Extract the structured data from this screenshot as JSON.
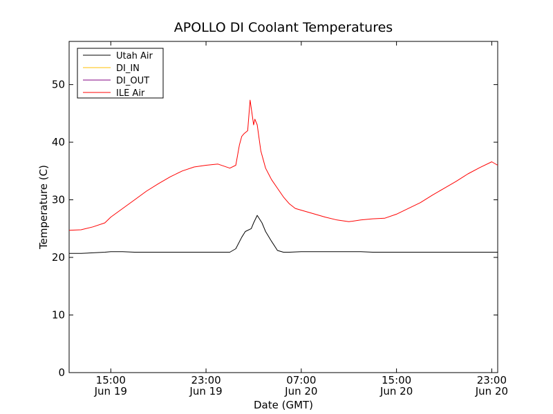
{
  "chart_data": {
    "type": "line",
    "title": "APOLLO DI Coolant Temperatures",
    "xlabel": "Date (GMT)",
    "ylabel": "Temperature (C)",
    "xlim_hours": [
      11.5,
      47.5
    ],
    "ylim": [
      0,
      57.5
    ],
    "yticks": [
      0,
      10,
      20,
      30,
      40,
      50
    ],
    "xticks": [
      {
        "hour": 15,
        "time": "15:00",
        "date": "Jun 19"
      },
      {
        "hour": 23,
        "time": "23:00",
        "date": "Jun 19"
      },
      {
        "hour": 31,
        "time": "07:00",
        "date": "Jun 20"
      },
      {
        "hour": 39,
        "time": "15:00",
        "date": "Jun 20"
      },
      {
        "hour": 47,
        "time": "23:00",
        "date": "Jun 20"
      }
    ],
    "legend_position": "top-left",
    "series": [
      {
        "name": "Utah Air",
        "color": "#000000",
        "x": [
          11.5,
          12.5,
          13.5,
          14.5,
          15.0,
          16.0,
          17.0,
          18.0,
          19.0,
          20.0,
          21.0,
          22.0,
          23.0,
          24.0,
          25.0,
          25.5,
          26.0,
          26.3,
          26.8,
          27.0,
          27.3,
          27.7,
          28.0,
          28.5,
          29.0,
          29.5,
          30.0,
          31.0,
          32.0,
          33.0,
          34.0,
          35.0,
          36.0,
          37.0,
          38.0,
          39.0,
          40.0,
          41.0,
          42.0,
          43.0,
          44.0,
          45.0,
          46.0,
          47.0,
          47.5
        ],
        "y": [
          20.7,
          20.7,
          20.8,
          20.9,
          21.0,
          21.0,
          20.9,
          20.9,
          20.9,
          20.9,
          20.9,
          20.9,
          20.9,
          20.9,
          20.9,
          21.5,
          23.5,
          24.5,
          25.0,
          26.0,
          27.3,
          26.0,
          24.5,
          22.8,
          21.2,
          20.9,
          20.9,
          21.0,
          21.0,
          21.0,
          21.0,
          21.0,
          21.0,
          20.9,
          20.9,
          20.9,
          20.9,
          20.9,
          20.9,
          20.9,
          20.9,
          20.9,
          20.9,
          20.9,
          20.9
        ]
      },
      {
        "name": "DI_IN",
        "color": "#ffbf00",
        "x": [],
        "y": []
      },
      {
        "name": "DI_OUT",
        "color": "#800080",
        "x": [],
        "y": []
      },
      {
        "name": "ILE Air",
        "color": "#ff0000",
        "x": [
          11.5,
          12.5,
          13.5,
          14.5,
          15.0,
          16.0,
          17.0,
          18.0,
          19.0,
          20.0,
          21.0,
          22.0,
          23.0,
          24.0,
          25.0,
          25.5,
          25.8,
          26.0,
          26.2,
          26.5,
          26.7,
          27.0,
          27.1,
          27.3,
          27.6,
          28.0,
          28.5,
          29.0,
          29.5,
          30.0,
          30.5,
          31.0,
          32.0,
          33.0,
          34.0,
          35.0,
          36.0,
          37.0,
          38.0,
          39.0,
          40.0,
          41.0,
          42.0,
          43.0,
          44.0,
          45.0,
          46.0,
          47.0,
          47.5
        ],
        "y": [
          24.7,
          24.8,
          25.3,
          26.0,
          27.0,
          28.5,
          30.0,
          31.5,
          32.8,
          34.0,
          35.0,
          35.7,
          36.0,
          36.2,
          35.5,
          36.0,
          39.5,
          41.0,
          41.5,
          42.0,
          47.3,
          43.0,
          44.0,
          43.0,
          38.5,
          35.5,
          33.5,
          32.0,
          30.5,
          29.3,
          28.5,
          28.2,
          27.6,
          27.0,
          26.5,
          26.2,
          26.5,
          26.7,
          26.8,
          27.5,
          28.5,
          29.5,
          30.8,
          32.0,
          33.2,
          34.5,
          35.6,
          36.6,
          36.0
        ]
      }
    ]
  }
}
